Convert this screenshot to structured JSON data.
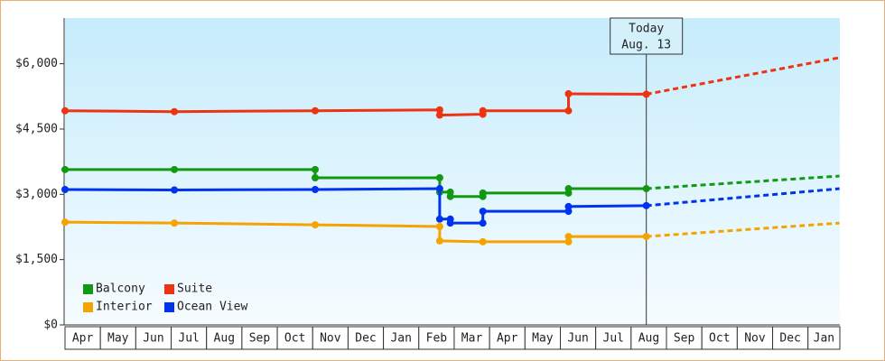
{
  "chart_data": {
    "type": "line",
    "categories": [
      "Apr",
      "May",
      "Jun",
      "Jul",
      "Aug",
      "Sep",
      "Oct",
      "Nov",
      "Dec",
      "Jan",
      "Feb",
      "Mar",
      "Apr",
      "May",
      "Jun",
      "Jul",
      "Aug",
      "Sep",
      "Oct",
      "Nov",
      "Dec",
      "Jan"
    ],
    "xlim": [
      0,
      21.9
    ],
    "ylim": [
      0,
      7050
    ],
    "yticks": [
      {
        "value": 0,
        "label": "$0"
      },
      {
        "value": 1500,
        "label": "$1,500"
      },
      {
        "value": 3000,
        "label": "$3,000"
      },
      {
        "value": 4500,
        "label": "$4,500"
      },
      {
        "value": 6000,
        "label": "$6,000"
      }
    ],
    "grid": false,
    "legend": "lower-left",
    "annotation": {
      "x": 16.43,
      "lines": [
        "Today",
        "Aug. 13"
      ]
    },
    "series": [
      {
        "name": "Balcony",
        "color": "#119911",
        "x": [
          0,
          3.09,
          7.07,
          7.07,
          10.59,
          10.59,
          10.89,
          10.89,
          11.81,
          11.81,
          14.23,
          14.23,
          16.43
        ],
        "values": [
          3570,
          3570,
          3570,
          3380,
          3380,
          3050,
          3050,
          2950,
          2950,
          3030,
          3030,
          3130,
          3130
        ],
        "forecast": {
          "x": [
            16.43,
            21.89
          ],
          "values": [
            3130,
            3420
          ]
        }
      },
      {
        "name": "Suite",
        "color": "#ee3311",
        "x": [
          0,
          3.09,
          7.07,
          10.59,
          10.59,
          11.81,
          11.81,
          14.23,
          14.23,
          16.43
        ],
        "values": [
          4920,
          4900,
          4920,
          4940,
          4820,
          4840,
          4920,
          4920,
          5310,
          5300
        ],
        "forecast": {
          "x": [
            16.43,
            21.89
          ],
          "values": [
            5300,
            6140
          ]
        }
      },
      {
        "name": "Interior",
        "color": "#f5a300",
        "x": [
          0,
          3.09,
          7.07,
          10.59,
          10.59,
          11.81,
          14.23,
          14.23,
          16.43
        ],
        "values": [
          2360,
          2340,
          2300,
          2260,
          1930,
          1910,
          1910,
          2030,
          2030
        ],
        "forecast": {
          "x": [
            16.43,
            21.89
          ],
          "values": [
            2030,
            2340
          ]
        }
      },
      {
        "name": "Ocean View",
        "color": "#0033ee",
        "x": [
          0,
          3.09,
          7.07,
          10.59,
          10.59,
          10.89,
          10.89,
          11.81,
          11.81,
          14.23,
          14.23,
          16.43
        ],
        "values": [
          3110,
          3100,
          3110,
          3130,
          2430,
          2430,
          2340,
          2340,
          2610,
          2610,
          2720,
          2740
        ],
        "forecast": {
          "x": [
            16.43,
            21.89
          ],
          "values": [
            2740,
            3130
          ]
        }
      }
    ]
  }
}
